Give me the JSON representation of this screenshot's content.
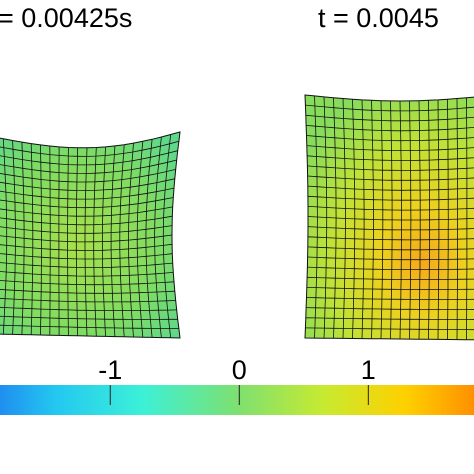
{
  "panels": [
    {
      "label": "= 0.00425s"
    },
    {
      "label": "t = 0.0045"
    }
  ],
  "colorbar": {
    "range": [
      -1.87,
      1.85
    ],
    "ticks": [
      -1,
      0,
      1
    ]
  }
}
